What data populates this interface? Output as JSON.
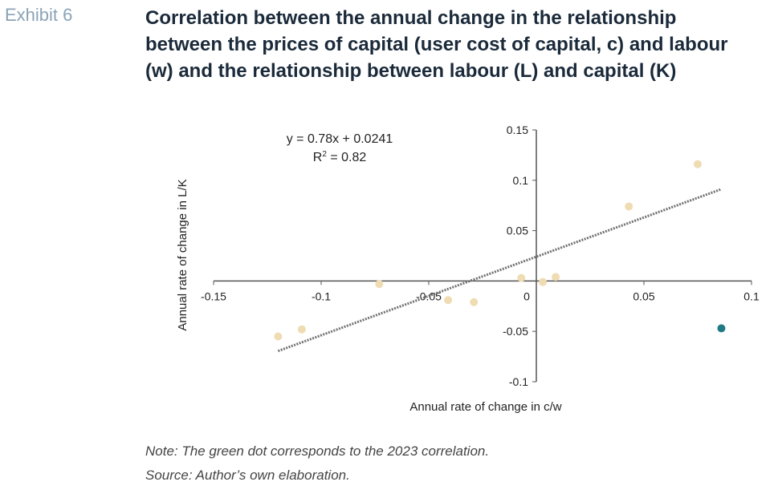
{
  "exhibit_label": "Exhibit 6",
  "title_lines": [
    "Correlation between the annual change in the relationship",
    "between the prices of capital (user cost of capital, c) and labour",
    "(w) and the relationship between labour (L) and capital (K)"
  ],
  "notes": {
    "note": "Note: The green dot corresponds to the 2023 correlation.",
    "source": "Source: Author’s own elaboration."
  },
  "colors": {
    "point": "#efdcb3",
    "highlight": "#1f7a85",
    "axis": "#555555",
    "trendline": "#707070"
  },
  "chart_data": {
    "type": "scatter",
    "xlabel": "Annual rate of change in c/w",
    "ylabel": "Annual rate of change in L/K",
    "xlim": [
      -0.15,
      0.1
    ],
    "ylim": [
      -0.1,
      0.15
    ],
    "xticks": [
      {
        "value": -0.15,
        "label": "-0.15"
      },
      {
        "value": -0.1,
        "label": "-0.1"
      },
      {
        "value": -0.05,
        "label": "-0.05"
      },
      {
        "value": 0,
        "label": "0"
      },
      {
        "value": 0.05,
        "label": "0.05"
      },
      {
        "value": 0.1,
        "label": "0.1"
      }
    ],
    "yticks": [
      {
        "value": 0.15,
        "label": "0.15"
      },
      {
        "value": 0.1,
        "label": "0.1"
      },
      {
        "value": 0.05,
        "label": "0.05"
      },
      {
        "value": -0.05,
        "label": "-0.05"
      },
      {
        "value": -0.1,
        "label": "-0.1"
      }
    ],
    "equation": "y = 0.78x + 0.0241",
    "r_squared_prefix": "R",
    "r_squared_exp": "2",
    "r_squared_value": " = 0.82",
    "trendline": {
      "slope": 0.78,
      "intercept": 0.0241,
      "x_range": [
        -0.12,
        0.086
      ]
    },
    "points": [
      {
        "x": -0.12,
        "y": -0.055
      },
      {
        "x": -0.109,
        "y": -0.048
      },
      {
        "x": -0.073,
        "y": -0.003
      },
      {
        "x": -0.041,
        "y": -0.019
      },
      {
        "x": -0.029,
        "y": -0.021
      },
      {
        "x": -0.007,
        "y": 0.003
      },
      {
        "x": 0.003,
        "y": -0.001
      },
      {
        "x": 0.009,
        "y": 0.004
      },
      {
        "x": 0.043,
        "y": 0.074
      },
      {
        "x": 0.075,
        "y": 0.116
      },
      {
        "x": 0.086,
        "y": -0.047,
        "highlight": true
      }
    ]
  }
}
